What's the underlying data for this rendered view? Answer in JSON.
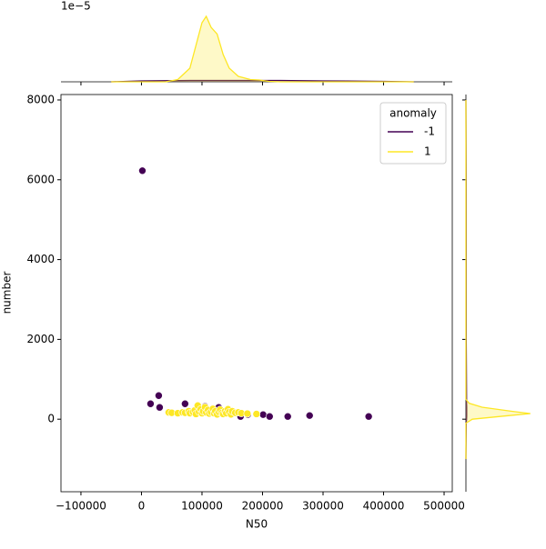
{
  "chart_data": {
    "type": "scatter",
    "x_label": "N50",
    "y_label": "number",
    "xlim": [
      -133000,
      513500
    ],
    "ylim": [
      -1818,
      8136
    ],
    "xticks": [
      {
        "value": -100000,
        "label": "−100000"
      },
      0,
      100000,
      200000,
      300000,
      400000,
      500000
    ],
    "yticks": [
      0,
      2000,
      4000,
      6000,
      8000
    ],
    "legend_title": "anomaly",
    "legend_position": "upper right",
    "series": [
      {
        "name": "-1",
        "color": "#440154",
        "x": [
          1500,
          15000,
          28500,
          30000,
          72000,
          105000,
          127600,
          163700,
          175700,
          201000,
          211700,
          241700,
          277800,
          375400
        ],
        "y": [
          6227,
          386,
          591,
          295,
          386,
          320,
          295,
          68,
          114,
          114,
          68,
          68,
          91,
          68
        ]
      },
      {
        "name": "1",
        "color": "#fde725",
        "x": [
          45000,
          50000,
          60000,
          68000,
          72000,
          78000,
          80000,
          85000,
          88000,
          90000,
          93000,
          95000,
          98000,
          100000,
          102000,
          105000,
          107000,
          110000,
          112000,
          115000,
          118000,
          120000,
          122000,
          125000,
          128000,
          130000,
          133000,
          135000,
          138000,
          140000,
          143000,
          145000,
          148000,
          150000,
          155000,
          160000,
          165000,
          175000,
          190000
        ],
        "y": [
          170,
          160,
          150,
          170,
          160,
          200,
          150,
          180,
          220,
          130,
          340,
          190,
          250,
          150,
          200,
          300,
          170,
          230,
          140,
          180,
          260,
          150,
          200,
          120,
          180,
          240,
          160,
          130,
          200,
          150,
          250,
          180,
          120,
          200,
          160,
          170,
          150,
          140,
          130
        ]
      }
    ],
    "marginal_x": {
      "offset_label": "1e−5",
      "ylim": [
        0,
        1.6
      ],
      "x": [
        -50000,
        0,
        40000,
        60000,
        80000,
        90000,
        100000,
        107000,
        115000,
        125000,
        135000,
        145000,
        160000,
        180000,
        195000,
        210000,
        230000,
        300000,
        400000,
        450000
      ],
      "densities": [
        [
          0,
          0.02,
          0.025,
          0.027,
          0.03,
          0.03,
          0.03,
          0.03,
          0.03,
          0.03,
          0.03,
          0.03,
          0.03,
          0.03,
          0.03,
          0.03,
          0.03,
          0.02,
          0.01,
          0
        ],
        [
          0,
          0,
          0,
          0.05,
          0.3,
          0.8,
          1.3,
          1.44,
          1.2,
          1.05,
          0.6,
          0.3,
          0.12,
          0.05,
          0.04,
          0.01,
          0,
          0,
          0,
          0
        ]
      ]
    },
    "marginal_y": {
      "xlim": [
        0,
        1.2
      ],
      "y": [
        -1000,
        -100,
        0,
        80,
        140,
        200,
        300,
        400,
        500,
        2000,
        6000,
        8000
      ],
      "densities": [
        [
          0,
          0.005,
          0.01,
          0.012,
          0.012,
          0.012,
          0.012,
          0.01,
          0.01,
          0.005,
          0.004,
          0
        ],
        [
          0,
          0,
          0.1,
          0.6,
          1.0,
          0.7,
          0.25,
          0.05,
          0,
          0,
          0,
          0
        ]
      ]
    }
  }
}
